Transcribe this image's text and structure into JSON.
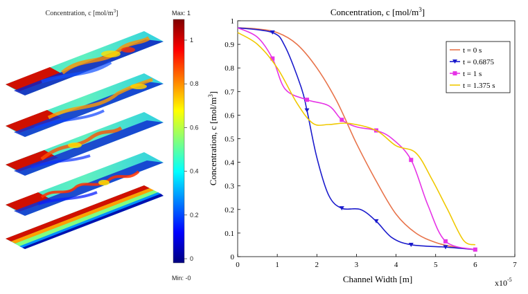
{
  "left_panel": {
    "title": "Concentration, c [mol/m",
    "title_sup": "3",
    "title_end": "]",
    "colorbar_max_label": "Max: 1",
    "colorbar_min_label": "Min: -0",
    "colorbar_ticks": [
      "1",
      "0.8",
      "0.6",
      "0.4",
      "0.2",
      "0"
    ],
    "colorbar_tick_values": [
      1,
      0.8,
      0.6,
      0.4,
      0.2,
      0
    ],
    "colormap": [
      "#00007f",
      "#0000ff",
      "#007fff",
      "#00ffff",
      "#7fff7f",
      "#ffff00",
      "#ff7f00",
      "#ff0000",
      "#7f0000"
    ]
  },
  "chart_data": {
    "type": "line",
    "title": "Concentration, c [mol/m",
    "title_sup": "3",
    "title_end": "]",
    "xlabel": "Channel Width [m]",
    "ylabel": "Concentration, c [mol/m",
    "ylabel_sup": "3",
    "ylabel_end": "]",
    "x_multiplier_label": "x10",
    "x_multiplier_exp": "-5",
    "xlim": [
      0,
      7
    ],
    "ylim": [
      0,
      1
    ],
    "xticks": [
      0,
      1,
      2,
      3,
      4,
      5,
      6,
      7
    ],
    "xtick_labels": [
      "0",
      "1",
      "2",
      "3",
      "4",
      "5",
      "6",
      "7"
    ],
    "yticks": [
      0,
      0.1,
      0.2,
      0.3,
      0.4,
      0.5,
      0.6,
      0.7,
      0.8,
      0.9,
      1
    ],
    "ytick_labels": [
      "0",
      "0.1",
      "0.2",
      "0.3",
      "0.4",
      "0.5",
      "0.6",
      "0.7",
      "0.8",
      "0.9",
      "1"
    ],
    "legend_position": "top-right",
    "series": [
      {
        "name": "t = 0 s",
        "color": "#e8734a",
        "marker": "none",
        "x": [
          0,
          0.5,
          1,
          1.5,
          2,
          2.5,
          3,
          3.5,
          4,
          4.5,
          5,
          5.5,
          6
        ],
        "y": [
          0.97,
          0.965,
          0.95,
          0.9,
          0.8,
          0.66,
          0.48,
          0.32,
          0.18,
          0.1,
          0.06,
          0.04,
          0.03
        ]
      },
      {
        "name": "t = 0.6875",
        "color": "#1a1acc",
        "marker": "triangle-down",
        "x": [
          0,
          0.88,
          1.2,
          1.6,
          1.75,
          2,
          2.3,
          2.63,
          3.1,
          3.5,
          3.9,
          4.4,
          5.3,
          6
        ],
        "y": [
          0.97,
          0.95,
          0.89,
          0.72,
          0.62,
          0.42,
          0.26,
          0.205,
          0.2,
          0.15,
          0.08,
          0.05,
          0.04,
          0.03
        ],
        "marker_x": [
          0.88,
          1.75,
          2.63,
          3.5,
          4.38,
          5.25
        ],
        "marker_y": [
          0.95,
          0.62,
          0.205,
          0.15,
          0.05,
          0.04
        ]
      },
      {
        "name": "t = 1 s",
        "color": "#e633e6",
        "marker": "square",
        "x": [
          0,
          0.5,
          0.88,
          1.2,
          1.75,
          2.3,
          2.63,
          3.0,
          3.5,
          3.9,
          4.38,
          4.8,
          5.25,
          6
        ],
        "y": [
          0.97,
          0.93,
          0.84,
          0.71,
          0.665,
          0.64,
          0.58,
          0.55,
          0.535,
          0.5,
          0.41,
          0.22,
          0.065,
          0.03
        ],
        "marker_x": [
          0.88,
          1.75,
          2.63,
          3.5,
          4.38,
          5.25,
          6
        ],
        "marker_y": [
          0.84,
          0.665,
          0.58,
          0.535,
          0.41,
          0.065,
          0.03
        ]
      },
      {
        "name": "t = 1.375 s",
        "color": "#f0c800",
        "marker": "none",
        "x": [
          0,
          0.5,
          1,
          1.5,
          1.9,
          2.3,
          2.8,
          3.5,
          4.0,
          4.5,
          4.9,
          5.3,
          5.7,
          6
        ],
        "y": [
          0.95,
          0.9,
          0.8,
          0.65,
          0.565,
          0.56,
          0.565,
          0.535,
          0.47,
          0.44,
          0.33,
          0.2,
          0.07,
          0.05
        ]
      }
    ]
  }
}
